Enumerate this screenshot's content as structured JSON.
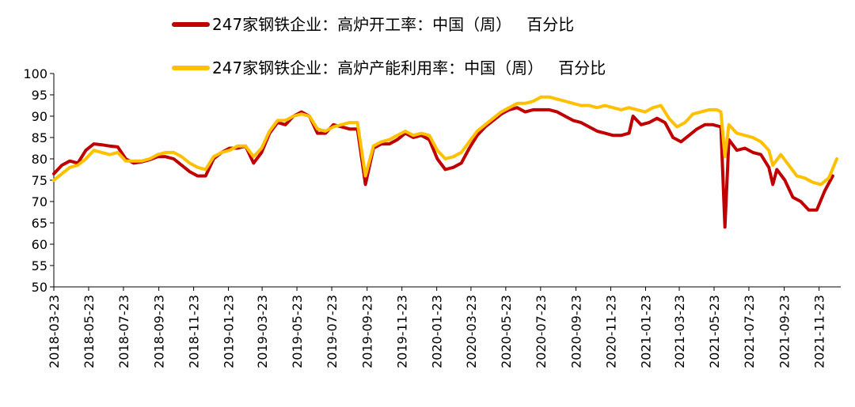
{
  "chart_data": {
    "type": "line",
    "title": "",
    "xlabel": "",
    "ylabel": "",
    "ylim": [
      50,
      100
    ],
    "yticks": [
      50,
      55,
      60,
      65,
      70,
      75,
      80,
      85,
      90,
      95,
      100
    ],
    "xlim": [
      "2018-03-23",
      "2021-12-31"
    ],
    "xticks": [
      "2018-03-23",
      "2018-05-23",
      "2018-07-23",
      "2018-09-23",
      "2018-11-23",
      "2019-01-23",
      "2019-03-23",
      "2019-05-23",
      "2019-07-23",
      "2019-09-23",
      "2019-11-23",
      "2020-01-23",
      "2020-03-23",
      "2020-05-23",
      "2020-07-23",
      "2020-09-23",
      "2020-11-23",
      "2021-01-23",
      "2021-03-23",
      "2021-05-23",
      "2021-07-23",
      "2021-09-23",
      "2021-11-23"
    ],
    "grid": false,
    "legend_position": "top",
    "series": [
      {
        "name": "247家钢铁企业：高炉开工率：中国（周）   百分比",
        "color": "#C00000",
        "points": [
          [
            "2018-03-23",
            76.5
          ],
          [
            "2018-04-06",
            78.5
          ],
          [
            "2018-04-20",
            79.5
          ],
          [
            "2018-05-04",
            79.0
          ],
          [
            "2018-05-18",
            82.0
          ],
          [
            "2018-06-01",
            83.5
          ],
          [
            "2018-06-15",
            83.3
          ],
          [
            "2018-06-29",
            83.0
          ],
          [
            "2018-07-13",
            82.8
          ],
          [
            "2018-07-27",
            80.0
          ],
          [
            "2018-08-10",
            79.0
          ],
          [
            "2018-08-24",
            79.3
          ],
          [
            "2018-09-07",
            79.8
          ],
          [
            "2018-09-21",
            80.5
          ],
          [
            "2018-10-05",
            80.5
          ],
          [
            "2018-10-19",
            80.0
          ],
          [
            "2018-11-02",
            78.5
          ],
          [
            "2018-11-16",
            77.0
          ],
          [
            "2018-11-30",
            76.0
          ],
          [
            "2018-12-14",
            76.0
          ],
          [
            "2018-12-28",
            80.0
          ],
          [
            "2019-01-11",
            81.5
          ],
          [
            "2019-01-25",
            82.5
          ],
          [
            "2019-02-08",
            82.5
          ],
          [
            "2019-02-22",
            83.0
          ],
          [
            "2019-03-08",
            79.0
          ],
          [
            "2019-03-22",
            81.5
          ],
          [
            "2019-04-05",
            86.0
          ],
          [
            "2019-04-19",
            88.5
          ],
          [
            "2019-05-03",
            88.0
          ],
          [
            "2019-05-17",
            90.0
          ],
          [
            "2019-05-31",
            91.0
          ],
          [
            "2019-06-14",
            90.0
          ],
          [
            "2019-06-28",
            86.0
          ],
          [
            "2019-07-12",
            86.0
          ],
          [
            "2019-07-26",
            88.0
          ],
          [
            "2019-08-09",
            87.5
          ],
          [
            "2019-08-23",
            87.0
          ],
          [
            "2019-09-06",
            87.0
          ],
          [
            "2019-09-20",
            74.0
          ],
          [
            "2019-10-04",
            82.5
          ],
          [
            "2019-10-18",
            83.5
          ],
          [
            "2019-11-01",
            83.5
          ],
          [
            "2019-11-15",
            84.5
          ],
          [
            "2019-11-29",
            86.0
          ],
          [
            "2019-12-13",
            85.0
          ],
          [
            "2019-12-27",
            85.5
          ],
          [
            "2020-01-10",
            84.5
          ],
          [
            "2020-01-24",
            80.0
          ],
          [
            "2020-02-07",
            77.5
          ],
          [
            "2020-02-21",
            78.0
          ],
          [
            "2020-03-06",
            79.0
          ],
          [
            "2020-03-20",
            82.5
          ],
          [
            "2020-04-03",
            85.5
          ],
          [
            "2020-04-17",
            87.5
          ],
          [
            "2020-05-01",
            89.0
          ],
          [
            "2020-05-15",
            90.5
          ],
          [
            "2020-05-29",
            91.5
          ],
          [
            "2020-06-12",
            92.0
          ],
          [
            "2020-06-26",
            91.0
          ],
          [
            "2020-07-10",
            91.5
          ],
          [
            "2020-07-24",
            91.5
          ],
          [
            "2020-08-07",
            91.5
          ],
          [
            "2020-08-21",
            91.0
          ],
          [
            "2020-09-04",
            90.0
          ],
          [
            "2020-09-18",
            89.0
          ],
          [
            "2020-10-02",
            88.5
          ],
          [
            "2020-10-16",
            87.5
          ],
          [
            "2020-10-30",
            86.5
          ],
          [
            "2020-11-13",
            86.0
          ],
          [
            "2020-11-27",
            85.5
          ],
          [
            "2020-12-11",
            85.5
          ],
          [
            "2020-12-25",
            86.0
          ],
          [
            "2021-01-01",
            90.0
          ],
          [
            "2021-01-15",
            88.0
          ],
          [
            "2021-01-29",
            88.5
          ],
          [
            "2021-02-12",
            89.5
          ],
          [
            "2021-02-26",
            88.5
          ],
          [
            "2021-03-12",
            85.0
          ],
          [
            "2021-03-26",
            84.0
          ],
          [
            "2021-04-09",
            85.5
          ],
          [
            "2021-04-23",
            87.0
          ],
          [
            "2021-05-07",
            88.0
          ],
          [
            "2021-05-21",
            88.0
          ],
          [
            "2021-06-04",
            87.5
          ],
          [
            "2021-06-11",
            64.0
          ],
          [
            "2021-06-18",
            84.5
          ],
          [
            "2021-07-02",
            82.0
          ],
          [
            "2021-07-16",
            82.5
          ],
          [
            "2021-07-30",
            81.5
          ],
          [
            "2021-08-13",
            81.0
          ],
          [
            "2021-08-27",
            78.0
          ],
          [
            "2021-09-03",
            74.0
          ],
          [
            "2021-09-10",
            77.5
          ],
          [
            "2021-09-24",
            75.0
          ],
          [
            "2021-10-08",
            71.0
          ],
          [
            "2021-10-22",
            70.0
          ],
          [
            "2021-11-05",
            68.0
          ],
          [
            "2021-11-19",
            68.0
          ],
          [
            "2021-12-03",
            72.5
          ],
          [
            "2021-12-17",
            76.0
          ]
        ]
      },
      {
        "name": "247家钢铁企业：高炉产能利用率：中国（周）   百分比",
        "color": "#FFC000",
        "points": [
          [
            "2018-03-23",
            75.0
          ],
          [
            "2018-04-06",
            76.5
          ],
          [
            "2018-04-20",
            78.0
          ],
          [
            "2018-05-04",
            78.5
          ],
          [
            "2018-05-18",
            80.0
          ],
          [
            "2018-06-01",
            82.0
          ],
          [
            "2018-06-15",
            81.5
          ],
          [
            "2018-06-29",
            81.0
          ],
          [
            "2018-07-13",
            81.5
          ],
          [
            "2018-07-27",
            79.5
          ],
          [
            "2018-08-10",
            79.5
          ],
          [
            "2018-08-24",
            79.5
          ],
          [
            "2018-09-07",
            80.0
          ],
          [
            "2018-09-21",
            81.0
          ],
          [
            "2018-10-05",
            81.5
          ],
          [
            "2018-10-19",
            81.5
          ],
          [
            "2018-11-02",
            80.5
          ],
          [
            "2018-11-16",
            79.0
          ],
          [
            "2018-11-30",
            78.0
          ],
          [
            "2018-12-14",
            77.5
          ],
          [
            "2018-12-28",
            80.5
          ],
          [
            "2019-01-11",
            81.5
          ],
          [
            "2019-01-25",
            82.0
          ],
          [
            "2019-02-08",
            83.0
          ],
          [
            "2019-02-22",
            83.0
          ],
          [
            "2019-03-08",
            80.5
          ],
          [
            "2019-03-22",
            82.5
          ],
          [
            "2019-04-05",
            86.5
          ],
          [
            "2019-04-19",
            89.0
          ],
          [
            "2019-05-03",
            89.0
          ],
          [
            "2019-05-17",
            90.0
          ],
          [
            "2019-05-31",
            90.5
          ],
          [
            "2019-06-14",
            90.0
          ],
          [
            "2019-06-28",
            87.0
          ],
          [
            "2019-07-12",
            86.5
          ],
          [
            "2019-07-26",
            87.5
          ],
          [
            "2019-08-09",
            88.0
          ],
          [
            "2019-08-23",
            88.5
          ],
          [
            "2019-09-06",
            88.5
          ],
          [
            "2019-09-20",
            76.0
          ],
          [
            "2019-10-04",
            83.0
          ],
          [
            "2019-10-18",
            84.0
          ],
          [
            "2019-11-01",
            84.5
          ],
          [
            "2019-11-15",
            85.5
          ],
          [
            "2019-11-29",
            86.5
          ],
          [
            "2019-12-13",
            85.5
          ],
          [
            "2019-12-27",
            86.0
          ],
          [
            "2020-01-10",
            85.5
          ],
          [
            "2020-01-24",
            82.0
          ],
          [
            "2020-02-07",
            80.0
          ],
          [
            "2020-02-21",
            80.5
          ],
          [
            "2020-03-06",
            81.5
          ],
          [
            "2020-03-20",
            84.0
          ],
          [
            "2020-04-03",
            86.5
          ],
          [
            "2020-04-17",
            88.0
          ],
          [
            "2020-05-01",
            89.5
          ],
          [
            "2020-05-15",
            91.0
          ],
          [
            "2020-05-29",
            92.0
          ],
          [
            "2020-06-12",
            93.0
          ],
          [
            "2020-06-26",
            93.0
          ],
          [
            "2020-07-10",
            93.5
          ],
          [
            "2020-07-24",
            94.5
          ],
          [
            "2020-08-07",
            94.5
          ],
          [
            "2020-08-21",
            94.0
          ],
          [
            "2020-09-04",
            93.5
          ],
          [
            "2020-09-18",
            93.0
          ],
          [
            "2020-10-02",
            92.5
          ],
          [
            "2020-10-16",
            92.5
          ],
          [
            "2020-10-30",
            92.0
          ],
          [
            "2020-11-13",
            92.5
          ],
          [
            "2020-11-27",
            92.0
          ],
          [
            "2020-12-11",
            91.5
          ],
          [
            "2020-12-25",
            92.0
          ],
          [
            "2021-01-08",
            91.5
          ],
          [
            "2021-01-22",
            91.0
          ],
          [
            "2021-02-05",
            92.0
          ],
          [
            "2021-02-19",
            92.5
          ],
          [
            "2021-03-05",
            89.5
          ],
          [
            "2021-03-19",
            87.5
          ],
          [
            "2021-04-02",
            88.5
          ],
          [
            "2021-04-16",
            90.5
          ],
          [
            "2021-04-30",
            91.0
          ],
          [
            "2021-05-14",
            91.5
          ],
          [
            "2021-05-28",
            91.5
          ],
          [
            "2021-06-04",
            91.0
          ],
          [
            "2021-06-11",
            80.5
          ],
          [
            "2021-06-18",
            88.0
          ],
          [
            "2021-07-02",
            86.0
          ],
          [
            "2021-07-16",
            85.5
          ],
          [
            "2021-07-30",
            85.0
          ],
          [
            "2021-08-13",
            84.0
          ],
          [
            "2021-08-27",
            82.0
          ],
          [
            "2021-09-03",
            78.5
          ],
          [
            "2021-09-17",
            81.0
          ],
          [
            "2021-10-01",
            78.5
          ],
          [
            "2021-10-15",
            76.0
          ],
          [
            "2021-10-29",
            75.5
          ],
          [
            "2021-11-12",
            74.5
          ],
          [
            "2021-11-26",
            74.0
          ],
          [
            "2021-12-10",
            75.5
          ],
          [
            "2021-12-24",
            80.0
          ]
        ]
      }
    ]
  }
}
